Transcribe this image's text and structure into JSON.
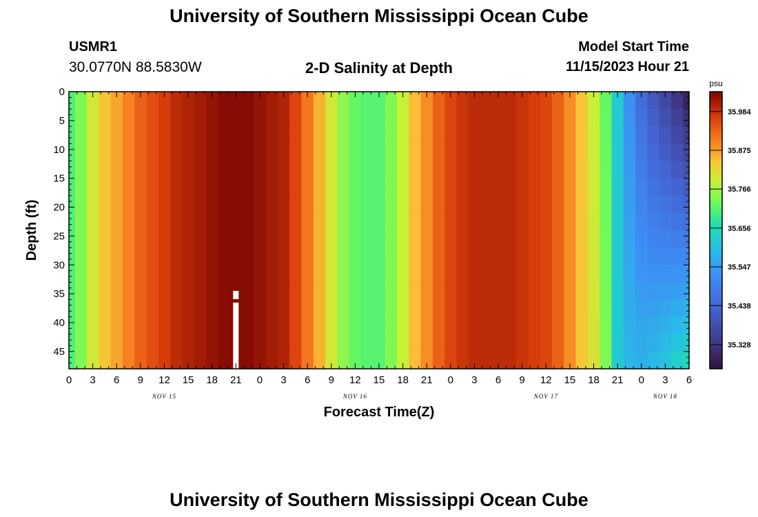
{
  "header": {
    "title": "University of Southern Mississippi Ocean Cube",
    "station": "USMR1",
    "location": "30.0770N  88.5830W",
    "plot_title": "2-D Salinity at Depth",
    "model_start_label": "Model Start Time",
    "model_start_value": "11/15/2023 Hour 21"
  },
  "footer": {
    "title": "University of Southern Mississippi Ocean Cube"
  },
  "chart_data": {
    "type": "heatmap",
    "title": "2-D Salinity at Depth",
    "xlabel": "Forecast Time(Z)",
    "ylabel": "Depth (ft)",
    "x_unit": "forecast hour (Z), Nov 15 00Z to Nov 18 06Z",
    "x_range_hours": [
      0,
      78
    ],
    "y_range_ft": [
      0,
      48
    ],
    "y_inverted": true,
    "x_tick_labels": [
      "0",
      "3",
      "6",
      "9",
      "12",
      "15",
      "18",
      "21",
      "0",
      "3",
      "6",
      "9",
      "12",
      "15",
      "18",
      "21",
      "0",
      "3",
      "6",
      "9",
      "12",
      "15",
      "18",
      "21",
      "0",
      "3",
      "6"
    ],
    "day_labels": [
      {
        "label": "NOV 15",
        "hour": 12
      },
      {
        "label": "NOV 16",
        "hour": 36
      },
      {
        "label": "NOV 17",
        "hour": 60
      },
      {
        "label": "NOV 18",
        "hour": 75
      }
    ],
    "y_tick_labels": [
      "0",
      "5",
      "10",
      "15",
      "20",
      "25",
      "30",
      "35",
      "40",
      "45"
    ],
    "y_tick_values": [
      0,
      5,
      10,
      15,
      20,
      25,
      30,
      35,
      40,
      45
    ],
    "colorbar": {
      "unit": "psu",
      "tick_labels": [
        "35.984",
        "35.875",
        "35.766",
        "35.656",
        "35.547",
        "35.438",
        "35.328"
      ],
      "tick_values": [
        35.984,
        35.875,
        35.766,
        35.656,
        35.547,
        35.438,
        35.328
      ],
      "range": [
        35.26,
        36.04
      ]
    },
    "surface_salinity_by_hour": [
      [
        0,
        35.7
      ],
      [
        1.5,
        35.74
      ],
      [
        3,
        35.8
      ],
      [
        4.5,
        35.84
      ],
      [
        6,
        35.87
      ],
      [
        7.5,
        35.9
      ],
      [
        9,
        35.93
      ],
      [
        10.5,
        35.95
      ],
      [
        12,
        35.97
      ],
      [
        13.5,
        35.99
      ],
      [
        15,
        36.0
      ],
      [
        16.5,
        36.01
      ],
      [
        18,
        36.02
      ],
      [
        19.5,
        36.03
      ],
      [
        21,
        36.03
      ],
      [
        22.5,
        36.03
      ],
      [
        24,
        36.02
      ],
      [
        25.5,
        36.01
      ],
      [
        27,
        36.0
      ],
      [
        28.5,
        35.96
      ],
      [
        30,
        35.91
      ],
      [
        31.5,
        35.86
      ],
      [
        33,
        35.8
      ],
      [
        34.5,
        35.75
      ],
      [
        36,
        35.72
      ],
      [
        37.5,
        35.71
      ],
      [
        39,
        35.71
      ],
      [
        40.5,
        35.74
      ],
      [
        42,
        35.79
      ],
      [
        43.5,
        35.85
      ],
      [
        45,
        35.89
      ],
      [
        46.5,
        35.93
      ],
      [
        48,
        35.96
      ],
      [
        49.5,
        35.98
      ],
      [
        51,
        35.99
      ],
      [
        52.5,
        35.99
      ],
      [
        54,
        35.99
      ],
      [
        55.5,
        35.99
      ],
      [
        57,
        35.98
      ],
      [
        58.5,
        35.97
      ],
      [
        60,
        35.96
      ],
      [
        61.5,
        35.93
      ],
      [
        63,
        35.89
      ],
      [
        64.5,
        35.84
      ],
      [
        66,
        35.79
      ],
      [
        67.5,
        35.72
      ],
      [
        69,
        35.62
      ],
      [
        70.5,
        35.52
      ],
      [
        72,
        35.45
      ],
      [
        73.5,
        35.4
      ],
      [
        75,
        35.36
      ],
      [
        76.5,
        35.32
      ],
      [
        78,
        35.28
      ]
    ],
    "missing_data": {
      "hour": 21,
      "depth_ft": [
        34.5,
        48
      ]
    }
  }
}
